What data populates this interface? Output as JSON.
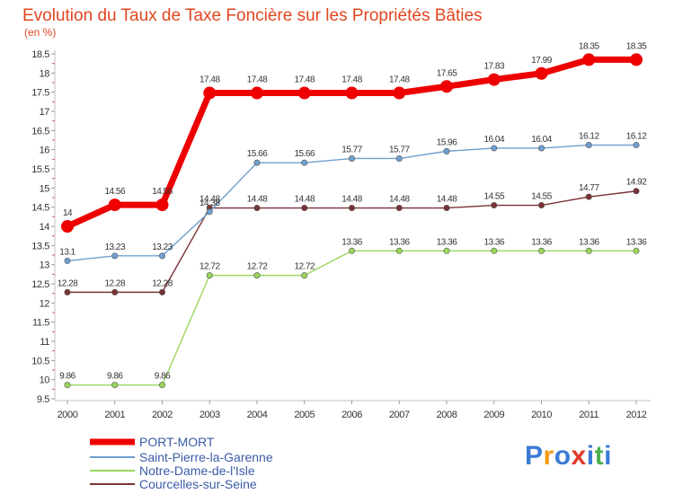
{
  "chart_data": {
    "type": "line",
    "title": "Evolution du Taux de Taxe Foncière sur les Propriétés Bâties",
    "ylabel": "(en %)",
    "xlabel": "",
    "x": [
      "2000",
      "2001",
      "2002",
      "2003",
      "2004",
      "2005",
      "2006",
      "2007",
      "2008",
      "2009",
      "2010",
      "2011",
      "2012"
    ],
    "ylim": [
      9.5,
      18.5
    ],
    "yticks": [
      "9.5",
      "10",
      "10.5",
      "11",
      "11.5",
      "12",
      "12.5",
      "13",
      "13.5",
      "14",
      "14.5",
      "15",
      "15.5",
      "16",
      "16.5",
      "17",
      "17.5",
      "18",
      "18.5"
    ],
    "grid": false,
    "legend_position": "bottom-left",
    "series": [
      {
        "name": "PORT-MORT",
        "color": "#ee0000",
        "values": [
          14,
          14.56,
          14.56,
          17.48,
          17.48,
          17.48,
          17.48,
          17.48,
          17.65,
          17.83,
          17.99,
          18.35,
          18.35
        ],
        "labels": [
          "14",
          "14.56",
          "14.56",
          "17.48",
          "17.48",
          "17.48",
          "17.48",
          "17.48",
          "17.65",
          "17.83",
          "17.99",
          "18.35",
          "18.35"
        ]
      },
      {
        "name": "Saint-Pierre-la-Garenne",
        "color": "#6e9fcf",
        "values": [
          13.1,
          13.23,
          13.23,
          14.38,
          15.66,
          15.66,
          15.77,
          15.77,
          15.96,
          16.04,
          16.04,
          16.12,
          16.12
        ],
        "labels": [
          "13.1",
          "13.23",
          "13.23",
          "14.38",
          "15.66",
          "15.66",
          "15.77",
          "15.77",
          "15.96",
          "16.04",
          "16.04",
          "16.12",
          "16.12"
        ]
      },
      {
        "name": "Notre-Dame-de-l'Isle",
        "color": "#9ad65c",
        "values": [
          9.86,
          9.86,
          9.86,
          12.72,
          12.72,
          12.72,
          13.36,
          13.36,
          13.36,
          13.36,
          13.36,
          13.36,
          13.36
        ],
        "labels": [
          "9.86",
          "9.86",
          "9.86",
          "12.72",
          "12.72",
          "12.72",
          "13.36",
          "13.36",
          "13.36",
          "13.36",
          "13.36",
          "13.36",
          "13.36"
        ]
      },
      {
        "name": "Courcelles-sur-Seine",
        "color": "#7a3236",
        "values": [
          12.28,
          12.28,
          12.28,
          14.48,
          14.48,
          14.48,
          14.48,
          14.48,
          14.48,
          14.55,
          14.55,
          14.77,
          14.92
        ],
        "labels": [
          "12.28",
          "12.28",
          "12.28",
          "14.48",
          "14.48",
          "14.48",
          "14.48",
          "14.48",
          "14.48",
          "14.55",
          "14.55",
          "14.77",
          "14.92"
        ]
      }
    ]
  },
  "logo": {
    "text": "Proxiti"
  }
}
